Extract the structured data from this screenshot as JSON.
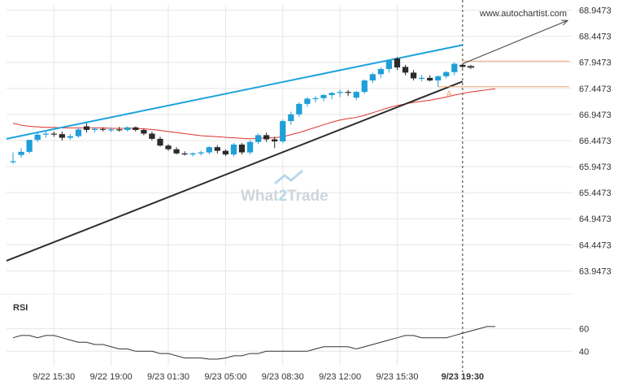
{
  "watermark": {
    "url": "www.autochartist.com",
    "brand_left": "What",
    "brand_mid": "2",
    "brand_right": "Trade"
  },
  "colors": {
    "bull": "#1e9fd8",
    "bear": "#2b2b2b",
    "ma": "#e0312b",
    "resistance": "#1ea3dc",
    "support": "#2d2d2d",
    "level": "#f0a070",
    "grid": "#e6e6e6",
    "text": "#333333",
    "watermark": "#cfd5dc"
  },
  "chart_data": [
    {
      "type": "candlestick",
      "title": "",
      "ylim": [
        63.75,
        69.05
      ],
      "y_ticks": [
        "68.9473",
        "68.4473",
        "67.9473",
        "67.4473",
        "66.9473",
        "66.4473",
        "65.9473",
        "65.4473",
        "64.9473",
        "64.4473",
        "63.9473"
      ],
      "x_ticks": [
        "9/22 15:30",
        "9/22 19:00",
        "9/23 01:30",
        "9/23 05:00",
        "9/23 08:30",
        "9/23 12:00",
        "9/23 15:30",
        "9/23 19:30"
      ],
      "x_tick_index": [
        5,
        12,
        19,
        26,
        33,
        40,
        47,
        55
      ],
      "candles": [
        [
          66.05,
          66.22,
          66.0,
          66.05
        ],
        [
          66.17,
          66.3,
          66.12,
          66.23
        ],
        [
          66.23,
          66.46,
          66.2,
          66.46
        ],
        [
          66.46,
          66.6,
          66.42,
          66.56
        ],
        [
          66.56,
          66.63,
          66.5,
          66.58
        ],
        [
          66.58,
          66.62,
          66.52,
          66.57
        ],
        [
          66.57,
          66.62,
          66.45,
          66.5
        ],
        [
          66.5,
          66.57,
          66.46,
          66.53
        ],
        [
          66.53,
          66.68,
          66.5,
          66.66
        ],
        [
          66.72,
          66.78,
          66.6,
          66.65
        ],
        [
          66.65,
          66.7,
          66.6,
          66.67
        ],
        [
          66.67,
          66.7,
          66.62,
          66.66
        ],
        [
          66.66,
          66.7,
          66.61,
          66.66
        ],
        [
          66.66,
          66.71,
          66.62,
          66.65
        ],
        [
          66.65,
          66.72,
          66.62,
          66.7
        ],
        [
          66.7,
          66.72,
          66.62,
          66.65
        ],
        [
          66.65,
          66.68,
          66.55,
          66.58
        ],
        [
          66.58,
          66.62,
          66.45,
          66.48
        ],
        [
          66.48,
          66.52,
          66.33,
          66.35
        ],
        [
          66.35,
          66.38,
          66.25,
          66.28
        ],
        [
          66.28,
          66.32,
          66.18,
          66.2
        ],
        [
          66.2,
          66.24,
          66.16,
          66.18
        ],
        [
          66.18,
          66.22,
          66.14,
          66.2
        ],
        [
          66.2,
          66.25,
          66.16,
          66.22
        ],
        [
          66.22,
          66.34,
          66.18,
          66.32
        ],
        [
          66.32,
          66.36,
          66.2,
          66.25
        ],
        [
          66.25,
          66.28,
          66.15,
          66.18
        ],
        [
          66.18,
          66.4,
          66.14,
          66.37
        ],
        [
          66.37,
          66.4,
          66.18,
          66.22
        ],
        [
          66.22,
          66.45,
          66.18,
          66.42
        ],
        [
          66.42,
          66.58,
          66.38,
          66.55
        ],
        [
          66.55,
          66.6,
          66.42,
          66.47
        ],
        [
          66.47,
          66.52,
          66.3,
          66.43
        ],
        [
          66.43,
          66.85,
          66.4,
          66.82
        ],
        [
          66.82,
          67.0,
          66.75,
          66.95
        ],
        [
          66.95,
          67.18,
          66.9,
          67.15
        ],
        [
          67.15,
          67.28,
          67.1,
          67.25
        ],
        [
          67.25,
          67.3,
          67.18,
          67.26
        ],
        [
          67.26,
          67.34,
          67.2,
          67.32
        ],
        [
          67.32,
          67.38,
          67.24,
          67.36
        ],
        [
          67.36,
          67.42,
          67.28,
          67.38
        ],
        [
          67.38,
          67.42,
          67.3,
          67.37
        ],
        [
          67.27,
          67.4,
          67.22,
          67.38
        ],
        [
          67.38,
          67.62,
          67.35,
          67.6
        ],
        [
          67.6,
          67.75,
          67.55,
          67.72
        ],
        [
          67.72,
          67.85,
          67.65,
          67.82
        ],
        [
          67.82,
          68.0,
          67.75,
          67.98
        ],
        [
          68.02,
          68.05,
          67.8,
          67.85
        ],
        [
          67.86,
          67.9,
          67.7,
          67.75
        ],
        [
          67.75,
          67.8,
          67.6,
          67.64
        ],
        [
          67.64,
          67.7,
          67.58,
          67.65
        ],
        [
          67.65,
          67.7,
          67.58,
          67.6
        ],
        [
          67.6,
          67.7,
          67.48,
          67.68
        ],
        [
          67.68,
          67.78,
          67.64,
          67.76
        ],
        [
          67.76,
          67.95,
          67.7,
          67.92
        ],
        [
          67.9,
          67.92,
          67.84,
          67.86
        ],
        [
          67.86,
          67.9,
          67.82,
          67.87
        ]
      ],
      "forecast_start_index": 55,
      "moving_average": [
        66.78,
        66.74,
        66.72,
        66.71,
        66.7,
        66.7,
        66.69,
        66.69,
        66.69,
        66.69,
        66.69,
        66.69,
        66.68,
        66.68,
        66.68,
        66.68,
        66.67,
        66.66,
        66.64,
        66.62,
        66.6,
        66.58,
        66.56,
        66.54,
        66.53,
        66.52,
        66.51,
        66.5,
        66.49,
        66.48,
        66.49,
        66.5,
        66.5,
        66.52,
        66.56,
        66.6,
        66.65,
        66.7,
        66.75,
        66.8,
        66.84,
        66.87,
        66.89,
        66.93,
        66.98,
        67.03,
        67.08,
        67.12,
        67.15,
        67.18,
        67.2,
        67.22,
        67.25,
        67.28,
        67.32,
        67.35,
        67.38,
        67.4,
        67.42,
        67.44
      ],
      "resistance_line": {
        "from": [
          0,
          66.48
        ],
        "to": [
          55,
          68.28
        ]
      },
      "support_line": {
        "from": [
          0,
          64.14
        ],
        "to": [
          55,
          67.58
        ]
      },
      "projection_arrow": {
        "from": [
          55,
          67.92
        ],
        "to": [
          69,
          68.75
        ]
      },
      "level_lines": [
        {
          "value": 67.97,
          "from_index": 55,
          "to_index": 70
        },
        {
          "value": 67.48,
          "from_index": 52,
          "to_index": 70
        }
      ],
      "pattern_label": "A",
      "pattern_label_at": [
        53,
        67.29
      ],
      "current_time_index": 55
    },
    {
      "type": "line",
      "title": "RSI",
      "ylim": [
        33,
        72
      ],
      "y_ticks": [
        "60",
        "40"
      ],
      "values": [
        52,
        54,
        54,
        52,
        54,
        54,
        52,
        50,
        48,
        48,
        46,
        46,
        44,
        42,
        42,
        40,
        40,
        40,
        38,
        38,
        36,
        34,
        34,
        34,
        33,
        33,
        34,
        36,
        36,
        38,
        38,
        40,
        40,
        40,
        40,
        40,
        40,
        42,
        44,
        44,
        44,
        44,
        42,
        44,
        46,
        48,
        50,
        52,
        54,
        54,
        52,
        52,
        52,
        52,
        54,
        56,
        58,
        60,
        62,
        62
      ]
    }
  ]
}
